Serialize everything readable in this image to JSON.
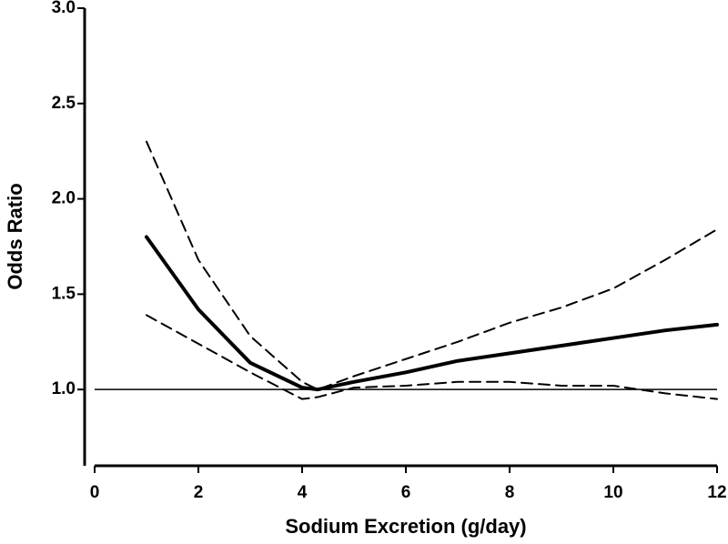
{
  "chart_data": {
    "type": "line",
    "x_label": "Sodium Excretion (g/day)",
    "y_label": "Odds Ratio",
    "x": [
      1,
      2,
      3,
      4,
      4.3,
      5,
      6,
      7,
      8,
      9,
      10,
      11,
      12
    ],
    "series": [
      {
        "color": "#000000",
        "width": 4,
        "dashed": false,
        "values": [
          1.8,
          1.42,
          1.14,
          1.01,
          1.0,
          1.04,
          1.09,
          1.15,
          1.19,
          1.23,
          1.27,
          1.31,
          1.34
        ]
      },
      {
        "color": "#000000",
        "width": 2,
        "dashed": true,
        "values": [
          2.3,
          1.68,
          1.28,
          1.04,
          1.0,
          1.07,
          1.16,
          1.25,
          1.35,
          1.43,
          1.53,
          1.68,
          1.84
        ]
      },
      {
        "color": "#000000",
        "width": 2,
        "dashed": true,
        "values": [
          1.39,
          1.24,
          1.09,
          0.95,
          0.96,
          1.01,
          1.02,
          1.04,
          1.04,
          1.02,
          1.02,
          0.98,
          0.95
        ]
      }
    ],
    "reference_line": 1.0,
    "xlim": [
      0,
      12
    ],
    "xticks": [
      0,
      2,
      4,
      6,
      8,
      10,
      12
    ],
    "ylim": [
      0.6,
      3.0
    ],
    "yticks": [
      {
        "value": 1.0,
        "label": "1.0"
      },
      {
        "value": 1.5,
        "label": "1.5"
      },
      {
        "value": 2.0,
        "label": "2.0"
      },
      {
        "value": 2.5,
        "label": "2.5"
      },
      {
        "value": 3.0,
        "label": "3.0"
      }
    ],
    "grid": false
  }
}
